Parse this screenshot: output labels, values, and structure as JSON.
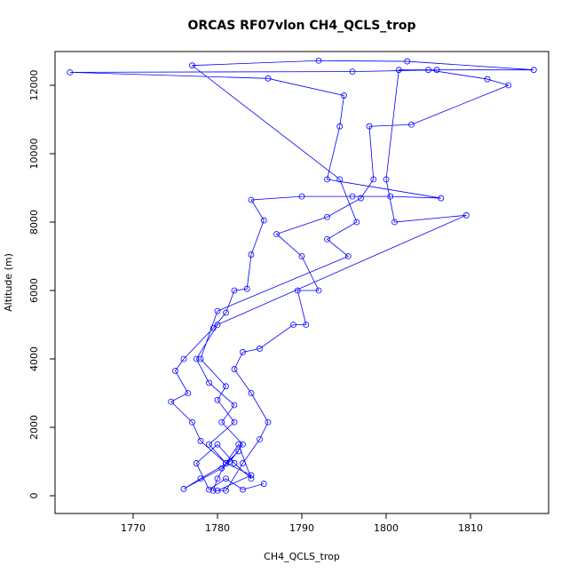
{
  "chart_data": {
    "type": "line",
    "title": "ORCAS RF07vlon CH4_QCLS_trop",
    "x_label": "CH4_QCLS_trop",
    "y_label": "Altitude (m)",
    "x": [
      1785.5,
      1783,
      1781,
      1779,
      1777.5,
      1780,
      1782,
      1784,
      1782.5,
      1781,
      1778,
      1777,
      1774.5,
      1776.5,
      1775,
      1776,
      1779.5,
      1781,
      1782,
      1783.5,
      1784,
      1785.5,
      1784,
      1790,
      1796,
      1800.5,
      1806.5,
      1793,
      1794.5,
      1795,
      1786,
      1762.5,
      1796,
      1806,
      1817.5,
      1802.5,
      1792,
      1777,
      1794.5,
      1796.5,
      1793,
      1795.5,
      1780,
      1778,
      1781,
      1780,
      1782,
      1779,
      1781,
      1780,
      1779.5,
      1781,
      1783,
      1785,
      1786,
      1784,
      1782,
      1783,
      1785,
      1789,
      1790.5,
      1789.5,
      1792,
      1790,
      1787,
      1793,
      1797,
      1798.5,
      1798,
      1803,
      1814.5,
      1812,
      1805,
      1801.5,
      1800,
      1801,
      1809.5,
      1780,
      1777.5,
      1779,
      1782,
      1780.5,
      1783,
      1781.5,
      1778,
      1776,
      1780.5,
      1782.5,
      1781,
      1784,
      1780
    ],
    "series": [
      {
        "color": "#0000ff",
        "values": [
          350,
          180,
          500,
          180,
          950,
          1500,
          950,
          500,
          1500,
          950,
          1600,
          2150,
          2750,
          3000,
          3650,
          4000,
          4900,
          5350,
          6000,
          6050,
          7050,
          8050,
          8650,
          8750,
          8750,
          8750,
          8700,
          9250,
          10800,
          11700,
          12200,
          12380,
          12400,
          12450,
          12450,
          12700,
          12720,
          12580,
          9250,
          8000,
          7500,
          7000,
          5400,
          4000,
          3200,
          2800,
          2150,
          1500,
          950,
          500,
          150,
          150,
          950,
          1650,
          2150,
          3000,
          3700,
          4200,
          4300,
          5000,
          5000,
          6000,
          6000,
          7000,
          7650,
          8150,
          8700,
          9250,
          10800,
          10850,
          12000,
          12180,
          12450,
          12450,
          9250,
          8000,
          8200,
          5000,
          4000,
          3300,
          2650,
          2150,
          1500,
          1000,
          500,
          200,
          800,
          1300,
          950,
          600,
          150
        ]
      }
    ],
    "xlim": [
      1760.74,
      1819.26
    ],
    "ylim": [
      -519,
      12987
    ],
    "xticks": [
      1770,
      1780,
      1790,
      1800,
      1810
    ],
    "yticks": [
      0,
      2000,
      4000,
      6000,
      8000,
      10000,
      12000
    ]
  }
}
